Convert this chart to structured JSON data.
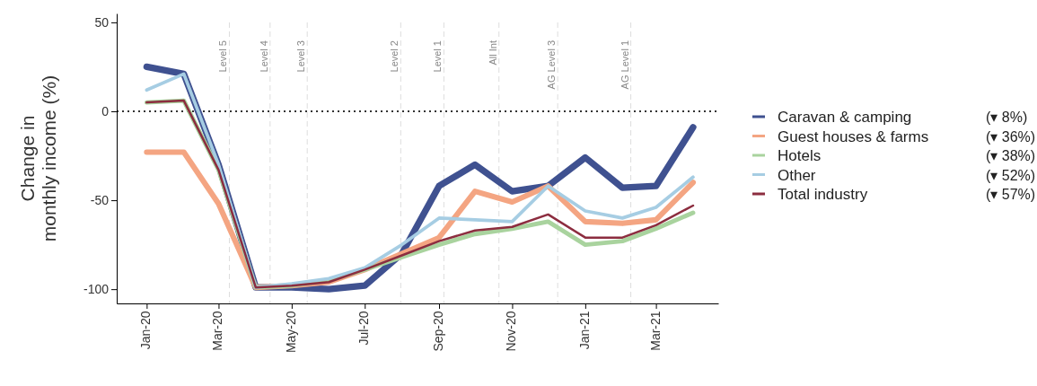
{
  "chart_data": {
    "type": "line",
    "ylabel": "Change in monthly income (%)",
    "x": [
      "2020-01",
      "2020-02",
      "2020-03",
      "2020-04",
      "2020-05",
      "2020-06",
      "2020-07",
      "2020-08",
      "2020-09",
      "2020-10",
      "2020-11",
      "2020-12",
      "2021-01",
      "2021-02",
      "2021-03",
      "2021-04"
    ],
    "xlim": [
      "2019-12-07",
      "2021-04-22"
    ],
    "xticks": [
      {
        "value": "2020-01",
        "label": "Jan-20"
      },
      {
        "value": "2020-03",
        "label": "Mar-20"
      },
      {
        "value": "2020-05",
        "label": "May-20"
      },
      {
        "value": "2020-07",
        "label": "Jul-20"
      },
      {
        "value": "2020-09",
        "label": "Sep-20"
      },
      {
        "value": "2020-11",
        "label": "Nov-20"
      },
      {
        "value": "2021-01",
        "label": "Jan-21"
      },
      {
        "value": "2021-03",
        "label": "Mar-21"
      }
    ],
    "ylim": [
      -108,
      55
    ],
    "yticks": [
      -100,
      -50,
      0,
      50
    ],
    "series": [
      {
        "name": "Caravan & camping",
        "color": "#3f5190",
        "values": [
          25,
          21,
          -30,
          -99,
          -99,
          -100,
          -98,
          -80,
          -42,
          -30,
          -45,
          -42,
          -26,
          -43,
          -42,
          -9
        ]
      },
      {
        "name": "Guest houses & farms",
        "color": "#f4a582",
        "values": [
          -23,
          -23,
          -52,
          -99,
          -98,
          -96,
          -89,
          -80,
          -71,
          -45,
          -51,
          -42,
          -62,
          -63,
          -61,
          -40
        ]
      },
      {
        "name": "Hotels",
        "color": "#a9d39e",
        "values": [
          5,
          6,
          -33,
          -99,
          -98,
          -95,
          -89,
          -82,
          -75,
          -69,
          -66,
          -62,
          -75,
          -73,
          -66,
          -57
        ]
      },
      {
        "name": "Other",
        "color": "#a6cde3",
        "values": [
          12,
          21,
          -30,
          -99,
          -97,
          -94,
          -88,
          -75,
          -60,
          -61,
          -62,
          -42,
          -56,
          -60,
          -54,
          -37
        ]
      },
      {
        "name": "Total industry",
        "color": "#8c2d3f",
        "values": [
          5,
          6,
          -33,
          -99,
          -98,
          -96,
          -89,
          -81,
          -73,
          -67,
          -65,
          -58,
          -71,
          -71,
          -64,
          -53
        ]
      }
    ],
    "annotations": [
      "(▾ 8%)",
      "(▾ 36%)",
      "(▾ 38%)",
      "(▾ 52%)",
      "(▾ 57%)"
    ],
    "ref_lines": [
      {
        "axis": "y",
        "value": 0,
        "color": "#333333",
        "line_style": "dotted"
      },
      {
        "axis": "x",
        "value": "2020-03-10",
        "label": "Level 5",
        "color": "#dddddd",
        "line_style": "dashed"
      },
      {
        "axis": "x",
        "value": "2020-04-13",
        "label": "Level 4",
        "color": "#dddddd",
        "line_style": "dashed"
      },
      {
        "axis": "x",
        "value": "2020-05-14",
        "label": "Level 3",
        "color": "#dddddd",
        "line_style": "dashed"
      },
      {
        "axis": "x",
        "value": "2020-07-31",
        "label": "Level 2",
        "color": "#dddddd",
        "line_style": "dashed"
      },
      {
        "axis": "x",
        "value": "2020-09-05",
        "label": "Level 1",
        "color": "#dddddd",
        "line_style": "dashed"
      },
      {
        "axis": "x",
        "value": "2020-10-21",
        "label": "All Int",
        "color": "#dddddd",
        "line_style": "dashed"
      },
      {
        "axis": "x",
        "value": "2020-12-09",
        "label": "AG Level 3",
        "color": "#dddddd",
        "line_style": "dashed"
      },
      {
        "axis": "x",
        "value": "2021-02-08",
        "label": "AG Level 1",
        "color": "#dddddd",
        "line_style": "dashed"
      }
    ],
    "grid": false,
    "legend": "right",
    "line_style": "solid",
    "marker": "none"
  }
}
